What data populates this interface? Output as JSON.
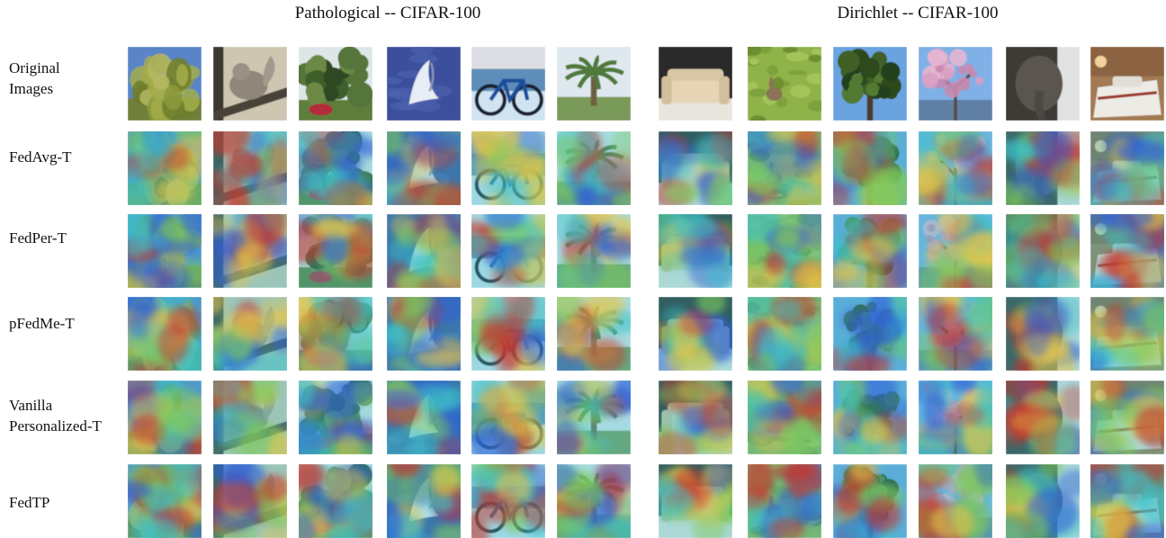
{
  "titles": {
    "left": "Pathological -- CIFAR-100",
    "right": "Dirichlet -- CIFAR-100"
  },
  "rows": [
    {
      "label": "Original\nImages"
    },
    {
      "label": "FedAvg-T"
    },
    {
      "label": "FedPer-T"
    },
    {
      "label": "pFedMe-T"
    },
    {
      "label": "Vanilla\nPersonalized-T"
    },
    {
      "label": "FedTP"
    }
  ],
  "images": [
    {
      "subject": "willow-tree"
    },
    {
      "subject": "squirrel"
    },
    {
      "subject": "oak-tree"
    },
    {
      "subject": "whale"
    },
    {
      "subject": "bicycle"
    },
    {
      "subject": "palm-tree"
    },
    {
      "subject": "couch"
    },
    {
      "subject": "rabbit"
    },
    {
      "subject": "tree"
    },
    {
      "subject": "blossom-tree"
    },
    {
      "subject": "elephant"
    },
    {
      "subject": "bed"
    }
  ],
  "colors": {
    "background": "#ffffff",
    "text": "#111111",
    "heat_cold": "#2f5fd8",
    "heat_cool": "#3cc2c9",
    "heat_mid": "#7fca5c",
    "heat_warm": "#e6c64a",
    "heat_hot": "#c8362a"
  }
}
